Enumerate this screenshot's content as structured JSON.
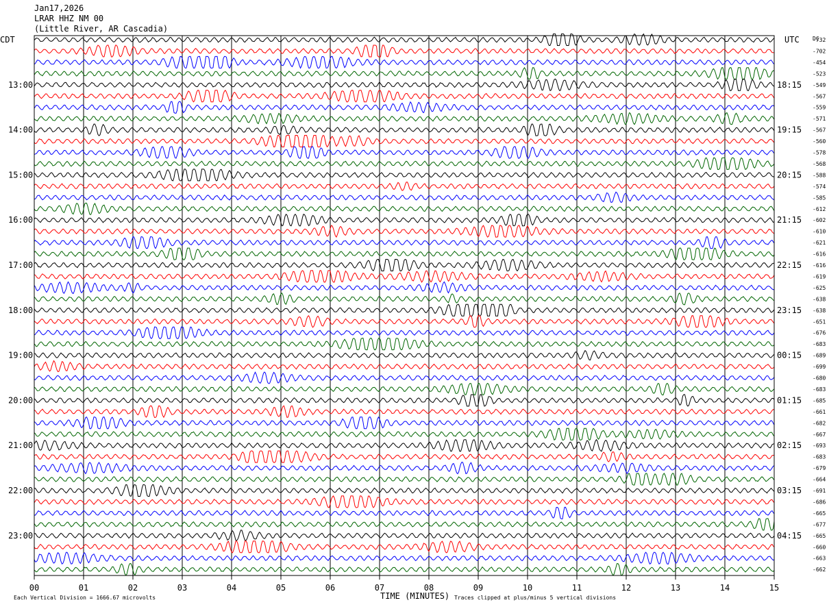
{
  "header": {
    "date": "Jan17,2026",
    "station": "LRAR HHZ NM 00",
    "location": "(Little River, AR Cascadia)"
  },
  "left_zone_label": "CDT",
  "right_zone_label": "UTC",
  "dc_label": "DC",
  "footer": {
    "scale_note": "Each Vertical Division = 1666.67 microvolts",
    "clip_note": "Traces clipped at plus/minus 5 vertical divisions"
  },
  "chart_data": {
    "type": "line",
    "title": "",
    "xlabel": "TIME (MINUTES)",
    "ylabel": "",
    "xlim": [
      0,
      15
    ],
    "x_ticks": [
      "00",
      "01",
      "02",
      "03",
      "04",
      "05",
      "06",
      "07",
      "08",
      "09",
      "10",
      "11",
      "12",
      "13",
      "14",
      "15"
    ],
    "grid": true,
    "trace_count": 48,
    "trace_colors": [
      "#000000",
      "#ff0000",
      "#0000ff",
      "#006600"
    ],
    "left_hour_labels": [
      {
        "row": 4,
        "label": "13:00"
      },
      {
        "row": 8,
        "label": "14:00"
      },
      {
        "row": 12,
        "label": "15:00"
      },
      {
        "row": 16,
        "label": "16:00"
      },
      {
        "row": 20,
        "label": "17:00"
      },
      {
        "row": 24,
        "label": "18:00"
      },
      {
        "row": 28,
        "label": "19:00"
      },
      {
        "row": 32,
        "label": "20:00"
      },
      {
        "row": 36,
        "label": "21:00"
      },
      {
        "row": 40,
        "label": "22:00"
      },
      {
        "row": 44,
        "label": "23:00"
      }
    ],
    "right_hour_labels": [
      {
        "row": 4,
        "label": "18:15"
      },
      {
        "row": 8,
        "label": "19:15"
      },
      {
        "row": 12,
        "label": "20:15"
      },
      {
        "row": 16,
        "label": "21:15"
      },
      {
        "row": 20,
        "label": "22:15"
      },
      {
        "row": 24,
        "label": "23:15"
      },
      {
        "row": 28,
        "label": "00:15"
      },
      {
        "row": 32,
        "label": "01:15"
      },
      {
        "row": 36,
        "label": "02:15"
      },
      {
        "row": 40,
        "label": "03:15"
      },
      {
        "row": 44,
        "label": "04:15"
      }
    ],
    "dc_offsets": [
      "-732",
      "-702",
      "-454",
      "-523",
      "-549",
      "-567",
      "-559",
      "-571",
      "-567",
      "-560",
      "-578",
      "-568",
      "-588",
      "-574",
      "-585",
      "-612",
      "-602",
      "-610",
      "-621",
      "-616",
      "-616",
      "-619",
      "-625",
      "-638",
      "-638",
      "-651",
      "-676",
      "-683",
      "-689",
      "-699",
      "-680",
      "-683",
      "-685",
      "-661",
      "-682",
      "-667",
      "-693",
      "-683",
      "-679",
      "-664",
      "-691",
      "-686",
      "-665",
      "-677",
      "-665",
      "-660",
      "-663",
      "-662"
    ]
  }
}
